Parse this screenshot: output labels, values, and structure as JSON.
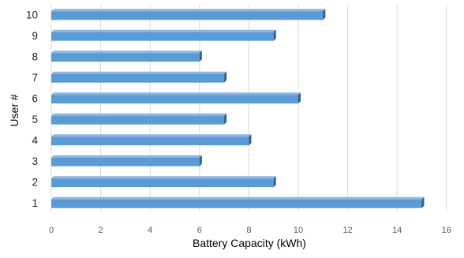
{
  "chart_data": {
    "type": "bar",
    "orientation": "horizontal",
    "title": "",
    "xlabel": "Battery Capacity (kWh)",
    "ylabel": "User #",
    "categories": [
      "1",
      "2",
      "3",
      "4",
      "5",
      "6",
      "7",
      "8",
      "9",
      "10"
    ],
    "values": [
      15,
      9,
      6,
      8,
      7,
      10,
      7,
      6,
      9,
      11
    ],
    "xlim": [
      0,
      16
    ],
    "xticks": [
      "0",
      "2",
      "4",
      "6",
      "8",
      "10",
      "12",
      "14",
      "16"
    ],
    "grid": "vertical",
    "legend": "none",
    "colors": {
      "bar_front": "#5B9BD5",
      "bar_top": "#8CB7E2",
      "bar_side": "#2E5F8F",
      "grid": "#D9D9D9"
    }
  }
}
